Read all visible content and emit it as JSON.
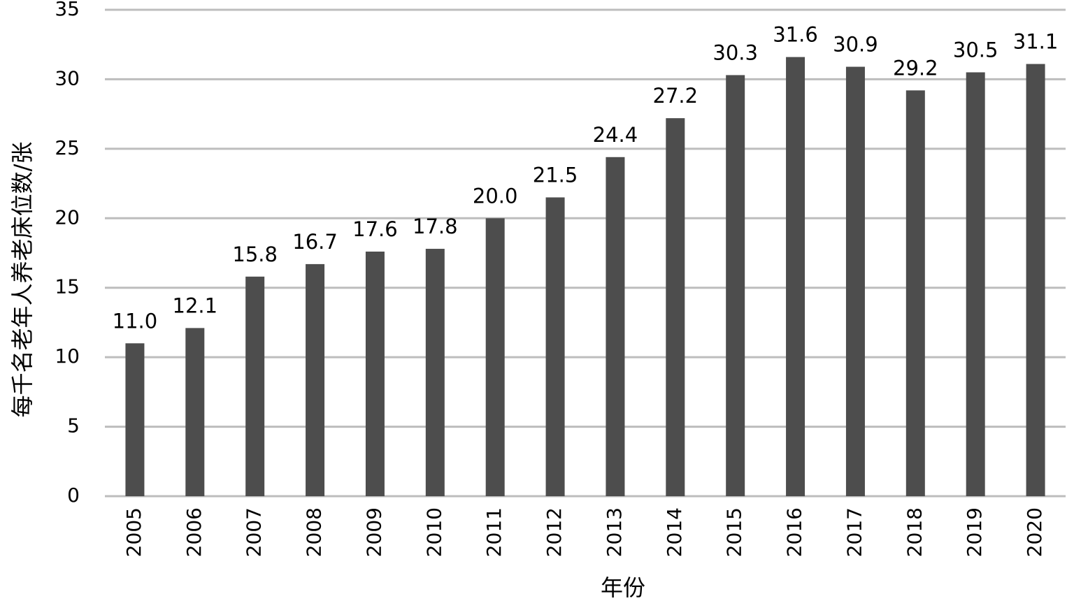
{
  "chart_data": {
    "type": "bar",
    "xlabel": "年份",
    "ylabel": "每千名老年人养老床位数/张",
    "categories": [
      "2005",
      "2006",
      "2007",
      "2008",
      "2009",
      "2010",
      "2011",
      "2012",
      "2013",
      "2014",
      "2015",
      "2016",
      "2017",
      "2018",
      "2019",
      "2020"
    ],
    "series": [
      {
        "values": [
          11.0,
          12.1,
          15.8,
          16.7,
          17.6,
          17.8,
          20.0,
          21.5,
          24.4,
          27.2,
          30.3,
          31.6,
          30.9,
          29.2,
          30.5,
          31.1
        ],
        "labels": [
          "11.0",
          "12.1",
          "15.8",
          "16.7",
          "17.6",
          "17.8",
          "20.0",
          "21.5",
          "24.4",
          "27.2",
          "30.3",
          "31.6",
          "30.9",
          "29.2",
          "30.5",
          "31.1"
        ]
      }
    ],
    "ylim": [
      0,
      35
    ],
    "yticks": [
      "0",
      "5",
      "10",
      "15",
      "20",
      "25",
      "30",
      "35"
    ],
    "grid": true,
    "legend": "none",
    "bar_color": "#4d4d4d",
    "grid_color": "#bdbdbd"
  }
}
